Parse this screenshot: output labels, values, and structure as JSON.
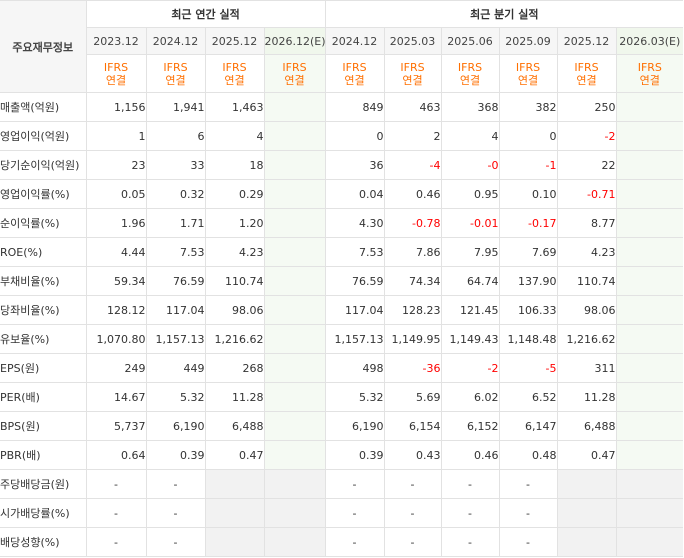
{
  "corner_label": "주요재무정보",
  "group_annual": "최근 연간 실적",
  "group_quarter": "최근 분기 실적",
  "periods": [
    "2023.12",
    "2024.12",
    "2025.12",
    "2026.12(E)",
    "2024.12",
    "2025.03",
    "2025.06",
    "2025.09",
    "2025.12",
    "2026.03(E)"
  ],
  "ifrs_line1": "IFRS",
  "ifrs_line2": "연결",
  "rows": [
    {
      "label": "매출액(억원)",
      "values": [
        "1,156",
        "1,941",
        "1,463",
        "",
        "849",
        "463",
        "368",
        "382",
        "250",
        ""
      ]
    },
    {
      "label": "영업이익(억원)",
      "values": [
        "1",
        "6",
        "4",
        "",
        "0",
        "2",
        "4",
        "0",
        "-2",
        ""
      ]
    },
    {
      "label": "당기순이익(억원)",
      "values": [
        "23",
        "33",
        "18",
        "",
        "36",
        "-4",
        "-0",
        "-1",
        "22",
        ""
      ]
    },
    {
      "label": "영업이익률(%)",
      "values": [
        "0.05",
        "0.32",
        "0.29",
        "",
        "0.04",
        "0.46",
        "0.95",
        "0.10",
        "-0.71",
        ""
      ]
    },
    {
      "label": "순이익률(%)",
      "values": [
        "1.96",
        "1.71",
        "1.20",
        "",
        "4.30",
        "-0.78",
        "-0.01",
        "-0.17",
        "8.77",
        ""
      ]
    },
    {
      "label": "ROE(%)",
      "values": [
        "4.44",
        "7.53",
        "4.23",
        "",
        "7.53",
        "7.86",
        "7.95",
        "7.69",
        "4.23",
        ""
      ]
    },
    {
      "label": "부채비율(%)",
      "values": [
        "59.34",
        "76.59",
        "110.74",
        "",
        "76.59",
        "74.34",
        "64.74",
        "137.90",
        "110.74",
        ""
      ]
    },
    {
      "label": "당좌비율(%)",
      "values": [
        "128.12",
        "117.04",
        "98.06",
        "",
        "117.04",
        "128.23",
        "121.45",
        "106.33",
        "98.06",
        ""
      ]
    },
    {
      "label": "유보율(%)",
      "values": [
        "1,070.80",
        "1,157.13",
        "1,216.62",
        "",
        "1,157.13",
        "1,149.95",
        "1,149.43",
        "1,148.48",
        "1,216.62",
        ""
      ]
    },
    {
      "label": "EPS(원)",
      "values": [
        "249",
        "449",
        "268",
        "",
        "498",
        "-36",
        "-2",
        "-5",
        "311",
        ""
      ]
    },
    {
      "label": "PER(배)",
      "values": [
        "14.67",
        "5.32",
        "11.28",
        "",
        "5.32",
        "5.69",
        "6.02",
        "6.52",
        "11.28",
        ""
      ]
    },
    {
      "label": "BPS(원)",
      "values": [
        "5,737",
        "6,190",
        "6,488",
        "",
        "6,190",
        "6,154",
        "6,152",
        "6,147",
        "6,488",
        ""
      ]
    },
    {
      "label": "PBR(배)",
      "values": [
        "0.64",
        "0.39",
        "0.47",
        "",
        "0.39",
        "0.43",
        "0.46",
        "0.48",
        "0.47",
        ""
      ]
    },
    {
      "label": "주당배당금(원)",
      "values": [
        "-",
        "-",
        "",
        "",
        "-",
        "-",
        "-",
        "-",
        "",
        ""
      ]
    },
    {
      "label": "시가배당률(%)",
      "values": [
        "-",
        "-",
        "",
        "",
        "-",
        "-",
        "-",
        "-",
        "",
        ""
      ]
    },
    {
      "label": "배당성향(%)",
      "values": [
        "-",
        "-",
        "",
        "",
        "-",
        "-",
        "-",
        "-",
        "",
        ""
      ]
    }
  ]
}
